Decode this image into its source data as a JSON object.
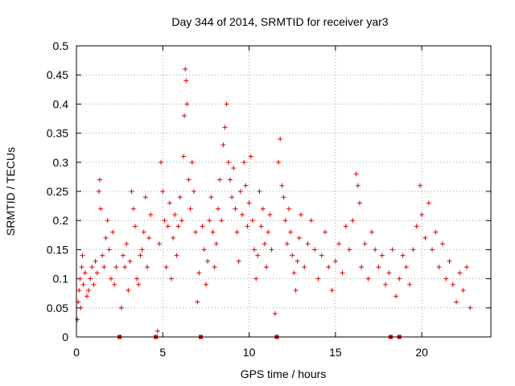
{
  "chart_data": {
    "type": "scatter",
    "title": "Day 344 of 2014, SRMTID for receiver yar3",
    "xlabel": "GPS time / hours",
    "ylabel": "SRMTID / TECUs",
    "xlim": [
      0,
      24
    ],
    "ylim": [
      0,
      0.5
    ],
    "xticks": [
      0,
      5,
      10,
      15,
      20
    ],
    "xtick_labels": [
      "0",
      "5",
      "10",
      "15",
      "20"
    ],
    "yticks": [
      0,
      0.05,
      0.1,
      0.15,
      0.2,
      0.25,
      0.3,
      0.35,
      0.4,
      0.45,
      0.5
    ],
    "ytick_labels": [
      "0",
      "0.05",
      "0.1",
      "0.15",
      "0.2",
      "0.25",
      "0.3",
      "0.35",
      "0.4",
      "0.45",
      "0.5"
    ],
    "grid": true,
    "marker": "+",
    "series_color": "#e00000",
    "gap_marker_color": "#cc0000",
    "gap_markers_x": [
      2.5,
      4.6,
      7.2,
      11.6,
      18.2,
      18.7
    ],
    "series": [
      {
        "name": "SRMTID",
        "points": [
          [
            0.05,
            0.03
          ],
          [
            0.1,
            0.06
          ],
          [
            0.15,
            0.08
          ],
          [
            0.2,
            0.1
          ],
          [
            0.25,
            0.05
          ],
          [
            0.3,
            0.12
          ],
          [
            0.35,
            0.14
          ],
          [
            0.4,
            0.09
          ],
          [
            0.5,
            0.11
          ],
          [
            0.6,
            0.07
          ],
          [
            0.7,
            0.08
          ],
          [
            0.8,
            0.1
          ],
          [
            0.9,
            0.12
          ],
          [
            1.0,
            0.09
          ],
          [
            1.1,
            0.13
          ],
          [
            1.2,
            0.11
          ],
          [
            1.3,
            0.25
          ],
          [
            1.35,
            0.27
          ],
          [
            1.4,
            0.22
          ],
          [
            1.5,
            0.14
          ],
          [
            1.6,
            0.12
          ],
          [
            1.7,
            0.17
          ],
          [
            1.8,
            0.2
          ],
          [
            1.9,
            0.15
          ],
          [
            2.0,
            0.1
          ],
          [
            2.1,
            0.18
          ],
          [
            2.2,
            0.09
          ],
          [
            2.3,
            0.12
          ],
          [
            2.6,
            0.05
          ],
          [
            2.7,
            0.14
          ],
          [
            2.8,
            0.12
          ],
          [
            2.9,
            0.16
          ],
          [
            3.0,
            0.08
          ],
          [
            3.1,
            0.13
          ],
          [
            3.2,
            0.25
          ],
          [
            3.3,
            0.22
          ],
          [
            3.4,
            0.19
          ],
          [
            3.5,
            0.1
          ],
          [
            3.6,
            0.09
          ],
          [
            3.7,
            0.14
          ],
          [
            3.8,
            0.15
          ],
          [
            3.9,
            0.18
          ],
          [
            4.0,
            0.24
          ],
          [
            4.1,
            0.12
          ],
          [
            4.2,
            0.17
          ],
          [
            4.3,
            0.21
          ],
          [
            4.7,
            0.01
          ],
          [
            4.8,
            0.16
          ],
          [
            4.9,
            0.3
          ],
          [
            5.0,
            0.25
          ],
          [
            5.1,
            0.2
          ],
          [
            5.2,
            0.12
          ],
          [
            5.3,
            0.19
          ],
          [
            5.4,
            0.23
          ],
          [
            5.5,
            0.1
          ],
          [
            5.6,
            0.17
          ],
          [
            5.7,
            0.21
          ],
          [
            5.8,
            0.14
          ],
          [
            5.9,
            0.19
          ],
          [
            6.0,
            0.24
          ],
          [
            6.1,
            0.2
          ],
          [
            6.2,
            0.31
          ],
          [
            6.25,
            0.38
          ],
          [
            6.3,
            0.46
          ],
          [
            6.35,
            0.44
          ],
          [
            6.4,
            0.4
          ],
          [
            6.5,
            0.27
          ],
          [
            6.6,
            0.22
          ],
          [
            6.7,
            0.3
          ],
          [
            6.8,
            0.25
          ],
          [
            6.9,
            0.18
          ],
          [
            7.0,
            0.06
          ],
          [
            7.1,
            0.11
          ],
          [
            7.3,
            0.19
          ],
          [
            7.4,
            0.15
          ],
          [
            7.5,
            0.09
          ],
          [
            7.6,
            0.13
          ],
          [
            7.7,
            0.2
          ],
          [
            7.8,
            0.24
          ],
          [
            7.9,
            0.18
          ],
          [
            8.0,
            0.12
          ],
          [
            8.1,
            0.16
          ],
          [
            8.2,
            0.22
          ],
          [
            8.3,
            0.27
          ],
          [
            8.4,
            0.2
          ],
          [
            8.5,
            0.33
          ],
          [
            8.6,
            0.36
          ],
          [
            8.7,
            0.4
          ],
          [
            8.8,
            0.3
          ],
          [
            8.9,
            0.27
          ],
          [
            9.0,
            0.24
          ],
          [
            9.1,
            0.29
          ],
          [
            9.2,
            0.22
          ],
          [
            9.3,
            0.18
          ],
          [
            9.4,
            0.13
          ],
          [
            9.5,
            0.25
          ],
          [
            9.6,
            0.21
          ],
          [
            9.7,
            0.3
          ],
          [
            9.8,
            0.26
          ],
          [
            9.9,
            0.19
          ],
          [
            10.0,
            0.23
          ],
          [
            10.1,
            0.31
          ],
          [
            10.2,
            0.2
          ],
          [
            10.3,
            0.15
          ],
          [
            10.4,
            0.1
          ],
          [
            10.5,
            0.14
          ],
          [
            10.6,
            0.25
          ],
          [
            10.7,
            0.19
          ],
          [
            10.8,
            0.22
          ],
          [
            10.9,
            0.16
          ],
          [
            11.0,
            0.12
          ],
          [
            11.1,
            0.18
          ],
          [
            11.2,
            0.21
          ],
          [
            11.3,
            0.15
          ],
          [
            11.5,
            0.04
          ],
          [
            11.7,
            0.3
          ],
          [
            11.8,
            0.34
          ],
          [
            11.9,
            0.26
          ],
          [
            12.0,
            0.24
          ],
          [
            12.1,
            0.2
          ],
          [
            12.2,
            0.16
          ],
          [
            12.3,
            0.22
          ],
          [
            12.4,
            0.18
          ],
          [
            12.5,
            0.14
          ],
          [
            12.6,
            0.11
          ],
          [
            12.7,
            0.08
          ],
          [
            12.8,
            0.13
          ],
          [
            12.9,
            0.17
          ],
          [
            13.0,
            0.21
          ],
          [
            13.2,
            0.12
          ],
          [
            13.4,
            0.16
          ],
          [
            13.6,
            0.2
          ],
          [
            13.8,
            0.15
          ],
          [
            14.0,
            0.1
          ],
          [
            14.2,
            0.14
          ],
          [
            14.4,
            0.18
          ],
          [
            14.6,
            0.12
          ],
          [
            14.8,
            0.08
          ],
          [
            15.0,
            0.13
          ],
          [
            15.2,
            0.16
          ],
          [
            15.4,
            0.11
          ],
          [
            15.6,
            0.19
          ],
          [
            15.8,
            0.15
          ],
          [
            16.0,
            0.2
          ],
          [
            16.2,
            0.28
          ],
          [
            16.3,
            0.26
          ],
          [
            16.4,
            0.23
          ],
          [
            16.5,
            0.12
          ],
          [
            16.7,
            0.16
          ],
          [
            16.9,
            0.1
          ],
          [
            17.1,
            0.18
          ],
          [
            17.3,
            0.15
          ],
          [
            17.5,
            0.12
          ],
          [
            17.7,
            0.14
          ],
          [
            17.9,
            0.09
          ],
          [
            18.1,
            0.11
          ],
          [
            18.3,
            0.15
          ],
          [
            18.5,
            0.07
          ],
          [
            18.7,
            0.1
          ],
          [
            18.9,
            0.14
          ],
          [
            19.1,
            0.12
          ],
          [
            19.3,
            0.09
          ],
          [
            19.5,
            0.15
          ],
          [
            19.7,
            0.19
          ],
          [
            19.9,
            0.26
          ],
          [
            20.0,
            0.21
          ],
          [
            20.2,
            0.17
          ],
          [
            20.4,
            0.23
          ],
          [
            20.6,
            0.15
          ],
          [
            20.8,
            0.18
          ],
          [
            21.0,
            0.12
          ],
          [
            21.2,
            0.16
          ],
          [
            21.4,
            0.1
          ],
          [
            21.6,
            0.13
          ],
          [
            21.8,
            0.09
          ],
          [
            22.0,
            0.06
          ],
          [
            22.2,
            0.11
          ],
          [
            22.4,
            0.08
          ],
          [
            22.6,
            0.12
          ],
          [
            22.8,
            0.05
          ]
        ]
      }
    ]
  }
}
